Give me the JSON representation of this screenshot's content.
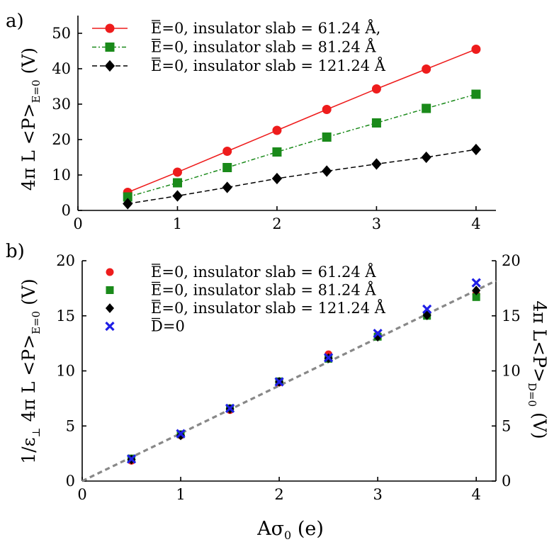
{
  "chart_data": [
    {
      "type": "line",
      "panel_label": "a)",
      "ylabel_main": "4π L <P>",
      "ylabel_sub": "E=0",
      "ylabel_unit": " (V)",
      "xlim": [
        0,
        4.2
      ],
      "ylim": [
        0,
        55
      ],
      "x_ticks": [
        "0",
        "1",
        "2",
        "3",
        "4"
      ],
      "y_ticks": [
        "0",
        "10",
        "20",
        "30",
        "40",
        "50"
      ],
      "legend_position": "top-left",
      "series": [
        {
          "name": "E=0, insulator slab = 61.24 Å,",
          "name_prefix": "E",
          "name_rest": "=0, insulator slab = 61.24 Å,",
          "color": "#ee1c1c",
          "marker": "circle",
          "line": "solid",
          "x": [
            0.5,
            1.0,
            1.5,
            2.0,
            2.5,
            3.0,
            3.5,
            4.0
          ],
          "y": [
            5.1,
            10.8,
            16.7,
            22.6,
            28.5,
            34.3,
            39.9,
            45.5
          ]
        },
        {
          "name": "E=0, insulator slab = 81.24 Å",
          "name_prefix": "E",
          "name_rest": "=0, insulator slab = 81.24 Å",
          "color": "#1a8a1a",
          "marker": "square",
          "line": "dashdot",
          "x": [
            0.5,
            1.0,
            1.5,
            2.0,
            2.5,
            3.0,
            3.5,
            4.0
          ],
          "y": [
            3.8,
            7.8,
            12.1,
            16.5,
            20.7,
            24.7,
            28.8,
            32.8
          ]
        },
        {
          "name": "E=0, insulator slab = 121.24 Å",
          "name_prefix": "E",
          "name_rest": "=0, insulator slab = 121.24 Å",
          "color": "#000000",
          "marker": "diamond",
          "line": "dashed",
          "x": [
            0.5,
            1.0,
            1.5,
            2.0,
            2.5,
            3.0,
            3.5,
            4.0
          ],
          "y": [
            1.9,
            4.1,
            6.5,
            9.0,
            11.1,
            13.1,
            15.0,
            17.2
          ]
        }
      ]
    },
    {
      "type": "scatter",
      "panel_label": "b)",
      "ylabel_main": "1/ε",
      "ylabel_perp": "⊥",
      "ylabel_mid": " 4π L <P>",
      "ylabel_sub": "E=0",
      "ylabel_unit": " (V)",
      "y2label_main": "4π L<P>",
      "y2label_sub": "D=0",
      "y2label_unit": " (V)",
      "xlabel_main": "Aσ",
      "xlabel_sub": "0",
      "xlabel_unit": " (e)",
      "xlim": [
        0,
        4.2
      ],
      "ylim": [
        0,
        20
      ],
      "x_ticks": [
        "0",
        "1",
        "2",
        "3",
        "4"
      ],
      "y_ticks": [
        "0",
        "5",
        "10",
        "15",
        "20"
      ],
      "y2_ticks": [
        "0",
        "5",
        "10",
        "15",
        "20"
      ],
      "legend_position": "top-left",
      "reference_line": {
        "style": "dashed",
        "color": "#888888",
        "slope": 4.33,
        "x_range": [
          0,
          4.2
        ]
      },
      "series": [
        {
          "name": "E=0, insulator slab = 61.24 Å",
          "name_prefix": "E",
          "name_rest": "=0, insulator slab = 61.24 Å",
          "color": "#ee1c1c",
          "marker": "circle",
          "x": [
            0.5,
            1.0,
            1.5,
            2.0,
            2.5,
            3.0,
            3.5,
            4.0
          ],
          "y": [
            1.85,
            4.15,
            6.45,
            8.95,
            11.5,
            13.25,
            15.2,
            16.95
          ]
        },
        {
          "name": "E=0, insulator slab = 81.24 Å",
          "name_prefix": "E",
          "name_rest": "=0, insulator slab = 81.24 Å",
          "color": "#1a8a1a",
          "marker": "square",
          "x": [
            0.5,
            1.0,
            1.5,
            2.0,
            2.5,
            3.0,
            3.5,
            4.0
          ],
          "y": [
            2.05,
            4.25,
            6.6,
            9.05,
            11.1,
            13.1,
            15.0,
            16.7
          ]
        },
        {
          "name": "E=0, insulator slab = 121.24 Å",
          "name_prefix": "E",
          "name_rest": "=0, insulator slab = 121.24 Å",
          "color": "#000000",
          "marker": "diamond",
          "x": [
            0.5,
            1.0,
            1.5,
            2.0,
            2.5,
            3.0,
            3.5,
            4.0
          ],
          "y": [
            1.95,
            4.15,
            6.55,
            9.0,
            11.15,
            13.1,
            15.05,
            17.3
          ]
        },
        {
          "name": "D=0",
          "name_prefix": "D",
          "name_rest": "=0",
          "color": "#1f1fe6",
          "marker": "x",
          "axis": "right",
          "x": [
            0.5,
            1.0,
            1.5,
            2.0,
            2.5,
            3.0,
            3.5,
            4.0
          ],
          "y": [
            2.0,
            4.3,
            6.6,
            9.0,
            11.2,
            13.4,
            15.6,
            18.0
          ]
        }
      ]
    }
  ]
}
